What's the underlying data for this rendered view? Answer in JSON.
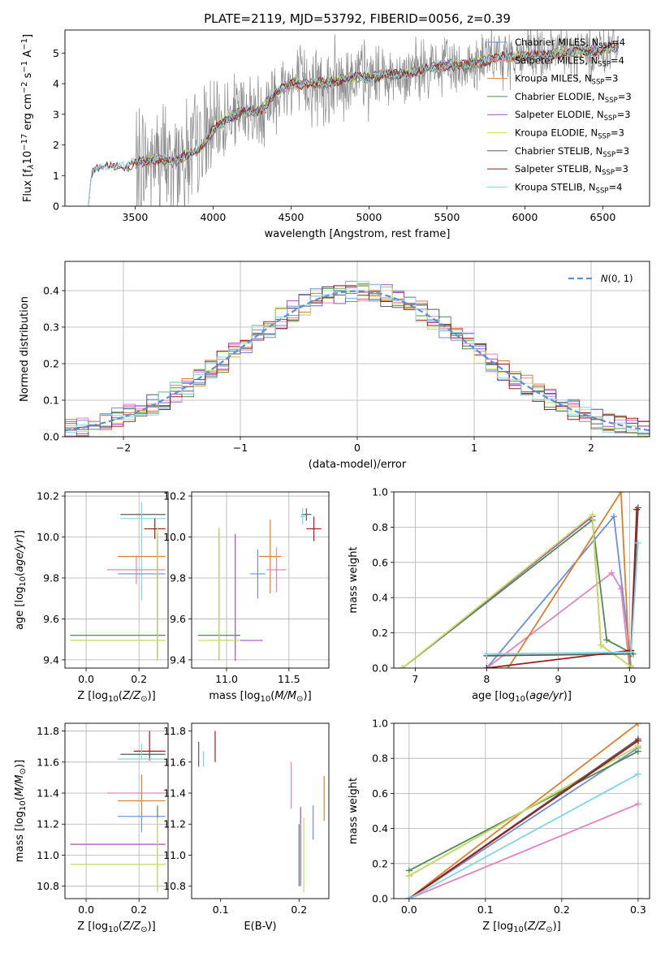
{
  "title": "PLATE=2119, MJD=53792, FIBERID=0056, z=0.39",
  "colors": {
    "chabrier_miles": "#6c8fd6",
    "salpeter_miles": "#e583bb",
    "kroupa_miles": "#dd7f2a",
    "chabrier_elodie": "#4f8a4f",
    "salpeter_elodie": "#a24fc4",
    "kroupa_elodie": "#c5e05a",
    "chabrier_stelib": "#5a5a5a",
    "salpeter_stelib": "#9e1b1b",
    "kroupa_stelib": "#7fd6e0",
    "data": "#8a8a8a",
    "normal": "#5b8fd8"
  },
  "series": [
    {
      "key": "chabrier_miles",
      "name": "Chabrier MILES, N_SSP=4",
      "base": "Chabrier MILES, N",
      "sub": "SSP",
      "n": "=4"
    },
    {
      "key": "salpeter_miles",
      "name": "Salpeter MILES, N_SSP=4",
      "base": "Salpeter MILES, N",
      "sub": "SSP",
      "n": "=4"
    },
    {
      "key": "kroupa_miles",
      "name": "Kroupa MILES, N_SSP=3",
      "base": "Kroupa MILES, N",
      "sub": "SSP",
      "n": "=3"
    },
    {
      "key": "chabrier_elodie",
      "name": "Chabrier ELODIE, N_SSP=3",
      "base": "Chabrier ELODIE, N",
      "sub": "SSP",
      "n": "=3"
    },
    {
      "key": "salpeter_elodie",
      "name": "Salpeter ELODIE, N_SSP=3",
      "base": "Salpeter ELODIE, N",
      "sub": "SSP",
      "n": "=3"
    },
    {
      "key": "kroupa_elodie",
      "name": "Kroupa ELODIE, N_SSP=3",
      "base": "Kroupa ELODIE, N",
      "sub": "SSP",
      "n": "=3"
    },
    {
      "key": "chabrier_stelib",
      "name": "Chabrier STELIB, N_SSP=3",
      "base": "Chabrier STELIB, N",
      "sub": "SSP",
      "n": "=3"
    },
    {
      "key": "salpeter_stelib",
      "name": "Salpeter STELIB, N_SSP=3",
      "base": "Salpeter STELIB, N",
      "sub": "SSP",
      "n": "=3"
    },
    {
      "key": "kroupa_stelib",
      "name": "Kroupa STELIB, N_SSP=4",
      "base": "Kroupa STELIB, N",
      "sub": "SSP",
      "n": "=4"
    }
  ],
  "chart_data": [
    {
      "id": "spectrum",
      "type": "line",
      "xlabel": "wavelength [Angstrom, rest frame]",
      "ylabel": "Flux [f_λ 10^-17 erg cm^-2 s^-1 A^-1]",
      "xlim": [
        3050,
        6800
      ],
      "ylim": [
        0,
        5.75
      ],
      "xticks": [
        3500,
        4000,
        4500,
        5000,
        5500,
        6000,
        6500
      ],
      "yticks": [
        0,
        1,
        2,
        3,
        4,
        5
      ],
      "grid": false,
      "legend": "top-right",
      "model_continuum": {
        "x": [
          3200,
          3220,
          3260,
          3300,
          3350,
          3400,
          3450,
          3500,
          3550,
          3600,
          3650,
          3700,
          3750,
          3800,
          3850,
          3900,
          3950,
          4000,
          4100,
          4200,
          4300,
          4400,
          4500,
          4600,
          4700,
          4800,
          4900,
          5000,
          5100,
          5200,
          5300,
          5400,
          5500,
          5600,
          5700,
          5800,
          5900,
          6000,
          6100,
          6200,
          6300,
          6400,
          6500,
          6600
        ],
        "y": [
          0,
          1.1,
          1.2,
          1.25,
          1.3,
          1.35,
          1.3,
          1.4,
          1.45,
          1.5,
          1.55,
          1.5,
          1.45,
          1.6,
          1.7,
          1.8,
          2.1,
          2.5,
          2.9,
          3.1,
          3.1,
          3.7,
          4.0,
          4.0,
          4.0,
          4.1,
          4.2,
          4.2,
          4.3,
          4.3,
          4.4,
          4.5,
          4.6,
          4.6,
          4.7,
          4.8,
          4.9,
          4.9,
          4.9,
          5.0,
          5.0,
          5.05,
          5.1,
          5.2
        ]
      }
    },
    {
      "id": "residuals",
      "type": "histogram",
      "xlabel": "(data-model)/error",
      "ylabel": "Normed distribution",
      "xlim": [
        -2.5,
        2.5
      ],
      "ylim": [
        0,
        0.48
      ],
      "xticks": [
        -2,
        -1,
        0,
        1,
        2
      ],
      "yticks": [
        0.0,
        0.1,
        0.2,
        0.3,
        0.4
      ],
      "grid": true,
      "legend": "top-right",
      "legend_label": "N(0,1)",
      "bin_edges_step": 0.1
    },
    {
      "id": "age_vs_Z",
      "type": "scatter",
      "xlabel": "Z [log10(Z/Z⊙)]",
      "ylabel": "age [log10(age/yr)]",
      "xlim": [
        -0.08,
        0.31
      ],
      "ylim": [
        9.36,
        10.22
      ],
      "xticks": [
        0.0,
        0.2
      ],
      "yticks": [
        9.4,
        9.6,
        9.8,
        10.0,
        10.2
      ],
      "grid": true,
      "points": [
        {
          "key": "chabrier_stelib",
          "x": 0.21,
          "xerr": [
            0.08,
            0.09
          ],
          "y": 10.11,
          "yerr": [
            0,
            0
          ]
        },
        {
          "key": "kroupa_stelib",
          "x": 0.21,
          "xerr": [
            0.08,
            0.09
          ],
          "y": 10.09,
          "yerr": [
            0.4,
            0.08
          ]
        },
        {
          "key": "salpeter_stelib",
          "x": 0.26,
          "xerr": [
            0.04,
            0.04
          ],
          "y": 10.04,
          "yerr": [
            0.05,
            0.05
          ]
        },
        {
          "key": "kroupa_miles",
          "x": 0.21,
          "xerr": [
            0.09,
            0.09
          ],
          "y": 9.905,
          "yerr": [
            0,
            0
          ]
        },
        {
          "key": "salpeter_miles",
          "x": 0.19,
          "xerr": [
            0.11,
            0.11
          ],
          "y": 9.84,
          "yerr": [
            0.07,
            0.07
          ]
        },
        {
          "key": "chabrier_miles",
          "x": 0.21,
          "xerr": [
            0.09,
            0.09
          ],
          "y": 9.82,
          "yerr": [
            0,
            0
          ]
        },
        {
          "key": "chabrier_elodie",
          "x": 0.27,
          "xerr": [
            0.33,
            0.03
          ],
          "y": 9.52,
          "yerr": [
            0.12,
            0.5
          ]
        },
        {
          "key": "salpeter_elodie",
          "x": 0.27,
          "xerr": [
            0.33,
            0.03
          ],
          "y": 9.495,
          "yerr": [
            0.08,
            0.5
          ]
        },
        {
          "key": "kroupa_elodie",
          "x": 0.27,
          "xerr": [
            0.33,
            0.03
          ],
          "y": 9.495,
          "yerr": [
            0.1,
            0.55
          ]
        }
      ]
    },
    {
      "id": "age_vs_mass",
      "type": "scatter",
      "xlabel": "mass [log10(M/M⊙)]",
      "ylabel": "",
      "xlim": [
        10.72,
        11.82
      ],
      "ylim": [
        9.36,
        10.22
      ],
      "xticks": [
        11.0,
        11.5
      ],
      "yticks": [
        9.4,
        9.6,
        9.8,
        10.0,
        10.2
      ],
      "grid": true,
      "points": [
        {
          "key": "chabrier_stelib",
          "x": 11.64,
          "xerr": [
            0.04,
            0.04
          ],
          "y": 10.11,
          "yerr": [
            0.03,
            0.03
          ]
        },
        {
          "key": "kroupa_stelib",
          "x": 11.61,
          "xerr": [
            0.02,
            0.02
          ],
          "y": 10.1,
          "yerr": [
            0.04,
            0.04
          ]
        },
        {
          "key": "salpeter_stelib",
          "x": 11.7,
          "xerr": [
            0.06,
            0.06
          ],
          "y": 10.04,
          "yerr": [
            0.06,
            0.06
          ]
        },
        {
          "key": "kroupa_miles",
          "x": 11.35,
          "xerr": [
            0.09,
            0.09
          ],
          "y": 9.905,
          "yerr": [
            0.18,
            0.18
          ]
        },
        {
          "key": "salpeter_miles",
          "x": 11.4,
          "xerr": [
            0.08,
            0.08
          ],
          "y": 9.84,
          "yerr": [
            0.11,
            0.11
          ]
        },
        {
          "key": "chabrier_miles",
          "x": 11.25,
          "xerr": [
            0.06,
            0.06
          ],
          "y": 9.82,
          "yerr": [
            0.12,
            0.12
          ]
        },
        {
          "key": "chabrier_elodie",
          "x": 10.94,
          "xerr": [
            0.17,
            0.17
          ],
          "y": 9.52,
          "yerr": [
            0.12,
            0.52
          ]
        },
        {
          "key": "salpeter_elodie",
          "x": 11.07,
          "xerr": [
            0.22,
            0.22
          ],
          "y": 9.495,
          "yerr": [
            0.1,
            0.52
          ]
        },
        {
          "key": "kroupa_elodie",
          "x": 10.94,
          "xerr": [
            0.17,
            0.17
          ],
          "y": 9.495,
          "yerr": [
            0.1,
            0.55
          ]
        }
      ]
    },
    {
      "id": "weight_vs_age",
      "type": "line",
      "xlabel": "age [log10(age/yr)]",
      "ylabel": "mass weight",
      "xlim": [
        6.7,
        10.28
      ],
      "ylim": [
        0,
        1.0
      ],
      "xticks": [
        7,
        8,
        9,
        10
      ],
      "yticks": [
        0.0,
        0.2,
        0.4,
        0.6,
        0.8,
        1.0
      ],
      "grid": true,
      "series": [
        {
          "key": "chabrier_miles",
          "x": [
            8.0,
            9.78,
            10.0,
            10.02
          ],
          "y": [
            0.0,
            0.86,
            0.1,
            0.0
          ]
        },
        {
          "key": "salpeter_miles",
          "x": [
            8.0,
            9.75,
            9.88,
            10.0
          ],
          "y": [
            0.0,
            0.54,
            0.45,
            0.0
          ]
        },
        {
          "key": "kroupa_miles",
          "x": [
            8.3,
            9.88,
            10.0
          ],
          "y": [
            0.0,
            1.0,
            0.0
          ]
        },
        {
          "key": "chabrier_elodie",
          "x": [
            6.82,
            9.48,
            9.68,
            10.05
          ],
          "y": [
            0.0,
            0.84,
            0.16,
            0.08
          ]
        },
        {
          "key": "salpeter_elodie",
          "x": [
            6.82,
            9.48,
            9.6,
            10.05
          ],
          "y": [
            0.0,
            0.86,
            0.13,
            0.0
          ]
        },
        {
          "key": "kroupa_elodie",
          "x": [
            6.82,
            9.48,
            9.6,
            10.05
          ],
          "y": [
            0.0,
            0.87,
            0.13,
            0.0
          ]
        },
        {
          "key": "chabrier_stelib",
          "x": [
            8.0,
            10.02,
            10.12
          ],
          "y": [
            0.07,
            0.08,
            0.91
          ]
        },
        {
          "key": "salpeter_stelib",
          "x": [
            8.0,
            10.02,
            10.1
          ],
          "y": [
            0.0,
            0.1,
            0.9
          ]
        },
        {
          "key": "kroupa_stelib",
          "x": [
            8.0,
            10.02,
            10.12
          ],
          "y": [
            0.08,
            0.09,
            0.71
          ]
        }
      ]
    },
    {
      "id": "mass_vs_Z",
      "type": "scatter",
      "xlabel": "Z [log10(Z/Z⊙)]",
      "ylabel": "mass [log10(M/M⊙)]",
      "xlim": [
        -0.08,
        0.31
      ],
      "ylim": [
        10.72,
        11.85
      ],
      "xticks": [
        0.0,
        0.2
      ],
      "yticks": [
        10.8,
        11.0,
        11.2,
        11.4,
        11.6,
        11.8
      ],
      "grid": true,
      "points": [
        {
          "key": "salpeter_stelib",
          "x": 0.24,
          "xerr": [
            0.06,
            0.06
          ],
          "y": 11.67,
          "yerr": [
            0.06,
            0.13
          ]
        },
        {
          "key": "chabrier_stelib",
          "x": 0.21,
          "xerr": [
            0.08,
            0.09
          ],
          "y": 11.65,
          "yerr": [
            0,
            0
          ]
        },
        {
          "key": "kroupa_stelib",
          "x": 0.21,
          "xerr": [
            0.09,
            0.09
          ],
          "y": 11.62,
          "yerr": [
            0,
            0.1
          ]
        },
        {
          "key": "salpeter_miles",
          "x": 0.19,
          "xerr": [
            0.11,
            0.11
          ],
          "y": 11.4,
          "yerr": [
            0,
            0
          ]
        },
        {
          "key": "kroupa_miles",
          "x": 0.21,
          "xerr": [
            0.09,
            0.09
          ],
          "y": 11.35,
          "yerr": [
            0.1,
            0.17
          ]
        },
        {
          "key": "chabrier_miles",
          "x": 0.21,
          "xerr": [
            0.09,
            0.09
          ],
          "y": 11.25,
          "yerr": [
            0.1,
            0
          ]
        },
        {
          "key": "salpeter_elodie",
          "x": 0.07,
          "xerr": [
            0.13,
            0.23
          ],
          "y": 11.07,
          "yerr": [
            0,
            0
          ]
        },
        {
          "key": "chabrier_elodie",
          "x": 0.27,
          "xerr": [
            0.33,
            0.03
          ],
          "y": 10.94,
          "yerr": [
            0.16,
            0.38
          ]
        },
        {
          "key": "kroupa_elodie",
          "x": 0.27,
          "xerr": [
            0.33,
            0.03
          ],
          "y": 10.94,
          "yerr": [
            0.18,
            0.3
          ]
        }
      ]
    },
    {
      "id": "mass_vs_ebv",
      "type": "scatter",
      "xlabel": "E(B-V)",
      "ylabel": "",
      "xlim": [
        0.063,
        0.238
      ],
      "ylim": [
        10.72,
        11.85
      ],
      "xticks": [
        0.1,
        0.2
      ],
      "yticks": [
        10.8,
        11.0,
        11.2,
        11.4,
        11.6,
        11.8
      ],
      "grid": false,
      "points": [
        {
          "key": "chabrier_stelib",
          "x": 0.072,
          "xerr": [
            0,
            0
          ],
          "y": 11.65,
          "yerr": [
            0.08,
            0.08
          ]
        },
        {
          "key": "kroupa_stelib",
          "x": 0.078,
          "xerr": [
            0,
            0
          ],
          "y": 11.62,
          "yerr": [
            0.05,
            0.05
          ]
        },
        {
          "key": "salpeter_stelib",
          "x": 0.093,
          "xerr": [
            0,
            0
          ],
          "y": 11.7,
          "yerr": [
            0.1,
            0.1
          ]
        },
        {
          "key": "salpeter_miles",
          "x": 0.19,
          "xerr": [
            0,
            0
          ],
          "y": 11.45,
          "yerr": [
            0.15,
            0.15
          ]
        },
        {
          "key": "kroupa_miles",
          "x": 0.232,
          "xerr": [
            0,
            0
          ],
          "y": 11.35,
          "yerr": [
            0.13,
            0.16
          ]
        },
        {
          "key": "chabrier_miles",
          "x": 0.218,
          "xerr": [
            0,
            0
          ],
          "y": 11.2,
          "yerr": [
            0.1,
            0.12
          ]
        },
        {
          "key": "salpeter_elodie",
          "x": 0.202,
          "xerr": [
            0,
            0
          ],
          "y": 11.15,
          "yerr": [
            0.35,
            0.16
          ]
        },
        {
          "key": "chabrier_elodie",
          "x": 0.2,
          "xerr": [
            0,
            0
          ],
          "y": 11.0,
          "yerr": [
            0.2,
            0.2
          ]
        },
        {
          "key": "kroupa_elodie",
          "x": 0.206,
          "xerr": [
            0,
            0
          ],
          "y": 11.0,
          "yerr": [
            0.24,
            0.24
          ]
        }
      ]
    },
    {
      "id": "weight_vs_Z",
      "type": "line",
      "xlabel": "Z [log10(Z/Z⊙)]",
      "ylabel": "mass weight",
      "xlim": [
        -0.02,
        0.315
      ],
      "ylim": [
        0,
        1.0
      ],
      "xticks": [
        0.0,
        0.1,
        0.2,
        0.3
      ],
      "yticks": [
        0.0,
        0.2,
        0.4,
        0.6,
        0.8,
        1.0
      ],
      "grid": true,
      "series": [
        {
          "key": "chabrier_miles",
          "x": [
            0.0,
            0.3
          ],
          "y": [
            0.0,
            0.86
          ]
        },
        {
          "key": "salpeter_miles",
          "x": [
            0.0,
            0.3
          ],
          "y": [
            0.0,
            0.54
          ]
        },
        {
          "key": "kroupa_miles",
          "x": [
            0.0,
            0.3
          ],
          "y": [
            0.0,
            1.0
          ]
        },
        {
          "key": "chabrier_elodie",
          "x": [
            0.0,
            0.3
          ],
          "y": [
            0.16,
            0.84
          ]
        },
        {
          "key": "salpeter_elodie",
          "x": [
            0.0,
            0.3
          ],
          "y": [
            0.13,
            0.87
          ]
        },
        {
          "key": "kroupa_elodie",
          "x": [
            0.0,
            0.3
          ],
          "y": [
            0.13,
            0.87
          ]
        },
        {
          "key": "chabrier_stelib",
          "x": [
            0.0,
            0.3
          ],
          "y": [
            0.0,
            0.91
          ]
        },
        {
          "key": "salpeter_stelib",
          "x": [
            0.0,
            0.3
          ],
          "y": [
            0.0,
            0.9
          ]
        },
        {
          "key": "kroupa_stelib",
          "x": [
            0.0,
            0.3
          ],
          "y": [
            0.0,
            0.71
          ]
        }
      ]
    }
  ]
}
